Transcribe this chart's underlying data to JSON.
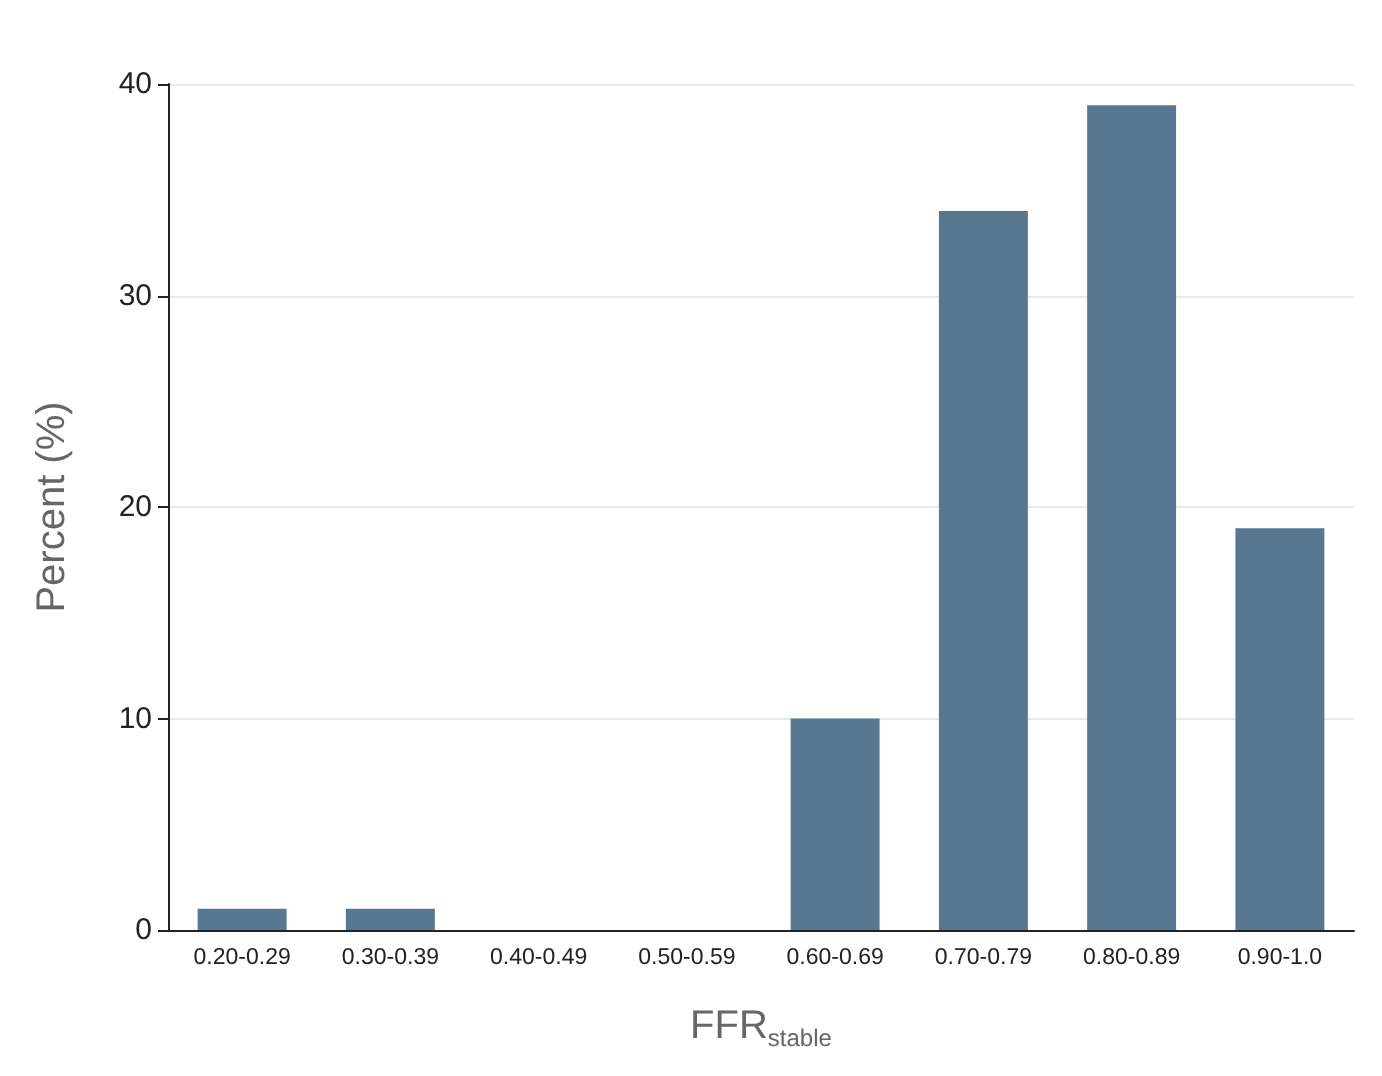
{
  "chart_data": {
    "type": "bar",
    "xlabel": "FFR$_{stable}$",
    "ylabel": "Percent (%)",
    "categories": [
      "0.20-0.29",
      "0.30-0.39",
      "0.40-0.49",
      "0.50-0.59",
      "0.60-0.69",
      "0.70-0.79",
      "0.80-0.89",
      "0.90-1.0"
    ],
    "values": [
      1,
      1,
      0,
      0,
      10,
      34,
      39,
      19
    ],
    "color": "#587891",
    "ylim": [
      0,
      40
    ],
    "yticks": [
      0,
      10,
      20,
      30,
      40
    ],
    "grid": "y"
  }
}
